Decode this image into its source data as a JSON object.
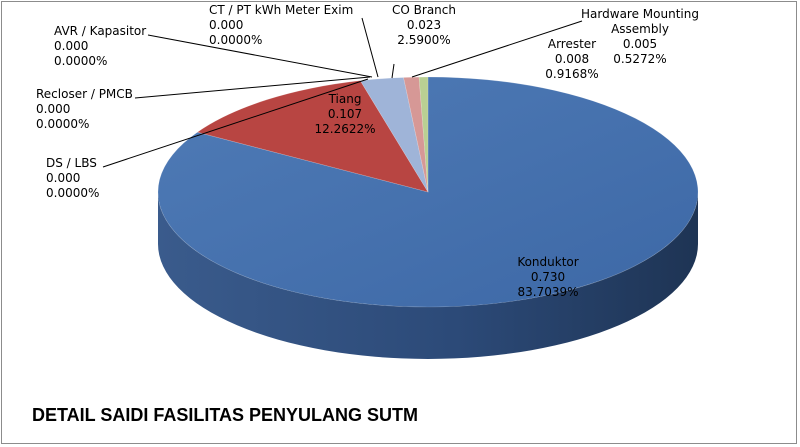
{
  "chart_data": {
    "type": "pie",
    "title": "DETAIL SAIDI FASILITAS PENYULANG SUTM",
    "legend": "none",
    "slices": [
      {
        "name": "Konduktor",
        "value": "0.730",
        "percent": "83.7039%",
        "color": "#4a74ad"
      },
      {
        "name": "DS / LBS",
        "value": "0.000",
        "percent": "0.0000%",
        "color": "#3a66a8"
      },
      {
        "name": "Recloser / PMCB",
        "value": "0.000",
        "percent": "0.0000%",
        "color": "#3a66a8"
      },
      {
        "name": "AVR / Kapasitor",
        "value": "0.000",
        "percent": "0.0000%",
        "color": "#3a66a8"
      },
      {
        "name": "Tiang",
        "value": "0.107",
        "percent": "12.2622%",
        "color": "#b84542"
      },
      {
        "name": "CT / PT kWh  Meter Exim",
        "value": "0.000",
        "percent": "0.0000%",
        "color": "#3a66a8"
      },
      {
        "name": "CO Branch",
        "value": "0.023",
        "percent": "2.5900%",
        "color": "#9fb4d8"
      },
      {
        "name": "Arrester",
        "value": "0.008",
        "percent": "0.9168%",
        "color": "#d69896"
      },
      {
        "name": "Hardware Mounting Assembly",
        "value": "0.005",
        "percent": "0.5272%",
        "color": "#b9cf93"
      }
    ]
  }
}
